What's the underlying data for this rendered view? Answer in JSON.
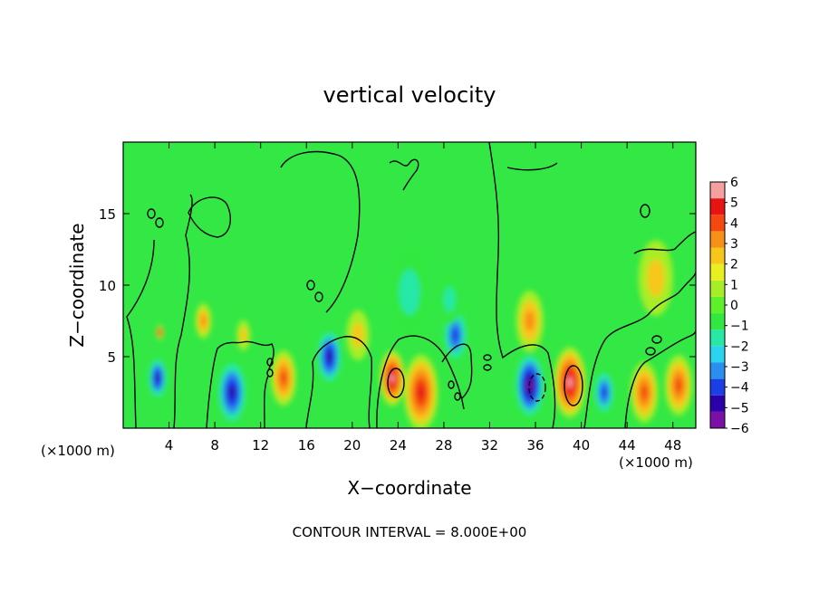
{
  "chart_data": {
    "type": "heatmap",
    "title": "vertical velocity",
    "xlabel": "X−coordinate",
    "ylabel": "Z−coordinate",
    "x_unit_left": "(×1000 m)",
    "x_unit_right": "(×1000 m)",
    "footer": "CONTOUR INTERVAL = 8.000E+00",
    "xlim": [
      0,
      50
    ],
    "ylim": [
      0,
      20
    ],
    "x_ticks": [
      4,
      8,
      12,
      16,
      20,
      24,
      28,
      32,
      36,
      40,
      44,
      48
    ],
    "x_tick_labels": [
      "4",
      "8",
      "12",
      "16",
      "20",
      "24",
      "28",
      "32",
      "36",
      "40",
      "44",
      "48"
    ],
    "y_ticks": [
      5,
      10,
      15
    ],
    "y_tick_labels": [
      "5",
      "10",
      "15"
    ],
    "colorbar": {
      "min": -6,
      "max": 6,
      "labels": [
        "6",
        "5",
        "4",
        "3",
        "2",
        "1",
        "0",
        "−1",
        "−2",
        "−3",
        "−4",
        "−5",
        "−6"
      ],
      "colors": [
        "#7b0fa8",
        "#2a00a8",
        "#1b3ee6",
        "#2b8ff0",
        "#2ad4f0",
        "#28e8a8",
        "#30e840",
        "#5ef02a",
        "#a6ee28",
        "#e8ee20",
        "#f8c61a",
        "#f89018",
        "#f44810",
        "#e81414",
        "#f4a0a0"
      ]
    },
    "features": [
      {
        "x": 3,
        "z": 3.5,
        "w": 0.9,
        "value": -4.5
      },
      {
        "x": 3.2,
        "z": 6.7,
        "w": 0.3,
        "value": 6
      },
      {
        "x": 7,
        "z": 7.5,
        "w": 0.7,
        "value": 2.5
      },
      {
        "x": 9.5,
        "z": 2.5,
        "w": 1.4,
        "value": -4.5
      },
      {
        "x": 10.5,
        "z": 6.5,
        "w": 0.6,
        "value": 1.5
      },
      {
        "x": 14,
        "z": 3.5,
        "w": 1.1,
        "value": 3.5
      },
      {
        "x": 18,
        "z": 5.0,
        "w": 1.2,
        "value": -4.5
      },
      {
        "x": 20.5,
        "z": 6.5,
        "w": 1.0,
        "value": 2
      },
      {
        "x": 23.5,
        "z": 3.5,
        "w": 1.1,
        "value": 6
      },
      {
        "x": 26,
        "z": 2.5,
        "w": 1.5,
        "value": 4.5
      },
      {
        "x": 25,
        "z": 9.5,
        "w": 1.8,
        "value": -2
      },
      {
        "x": 29,
        "z": 6.5,
        "w": 1.2,
        "value": -4
      },
      {
        "x": 28.5,
        "z": 9.0,
        "w": 1.0,
        "value": -1.5
      },
      {
        "x": 35.5,
        "z": 3.0,
        "w": 1.4,
        "value": -6
      },
      {
        "x": 35.5,
        "z": 7.5,
        "w": 1.2,
        "value": 3
      },
      {
        "x": 39,
        "z": 3.2,
        "w": 1.4,
        "value": 6
      },
      {
        "x": 42,
        "z": 2.5,
        "w": 1.0,
        "value": -4
      },
      {
        "x": 45.5,
        "z": 2.5,
        "w": 1.2,
        "value": 4
      },
      {
        "x": 48.5,
        "z": 3.0,
        "w": 1.2,
        "value": 3.5
      },
      {
        "x": 46.5,
        "z": 10.5,
        "w": 1.5,
        "value": 1.5
      }
    ]
  }
}
